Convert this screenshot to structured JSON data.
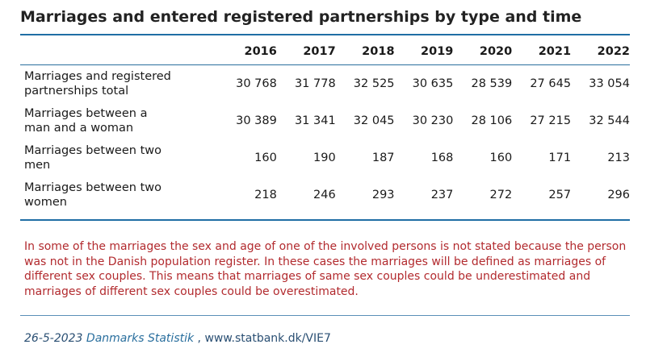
{
  "title": "Marriages and entered registered partnerships by type and time",
  "table": {
    "years": [
      "2016",
      "2017",
      "2018",
      "2019",
      "2020",
      "2021",
      "2022"
    ],
    "rows": [
      {
        "label_line1": "Marriages and registered",
        "label_line2": "partnerships total",
        "values": [
          "30 768",
          "31 778",
          "32 525",
          "30 635",
          "28 539",
          "27 645",
          "33 054"
        ]
      },
      {
        "label_line1": "Marriages between a",
        "label_line2": "man and a woman",
        "values": [
          "30 389",
          "31 341",
          "32 045",
          "30 230",
          "28 106",
          "27 215",
          "32 544"
        ]
      },
      {
        "label_line1": "Marriages between two",
        "label_line2": "men",
        "values": [
          "160",
          "190",
          "187",
          "168",
          "160",
          "171",
          "213"
        ]
      },
      {
        "label_line1": "Marriages between two",
        "label_line2": "women",
        "values": [
          "218",
          "246",
          "293",
          "237",
          "272",
          "257",
          "296"
        ]
      }
    ]
  },
  "note": "In some of the marriages the sex and age of one of the involved persons is not stated because the person was not in the Danish population register. In these cases the marriages will be defined as marriages of different sex couples. This means that marriages of same sex couples could be underestimated and marriages of different sex couples could be overestimated.",
  "footer": {
    "date": "26-5-2023",
    "source": "Danmarks Statistik",
    "separator": " , ",
    "url": "www.statbank.dk/VIE7"
  },
  "colors": {
    "accent": "#1f6ea5",
    "note_text": "#b22a2e"
  }
}
